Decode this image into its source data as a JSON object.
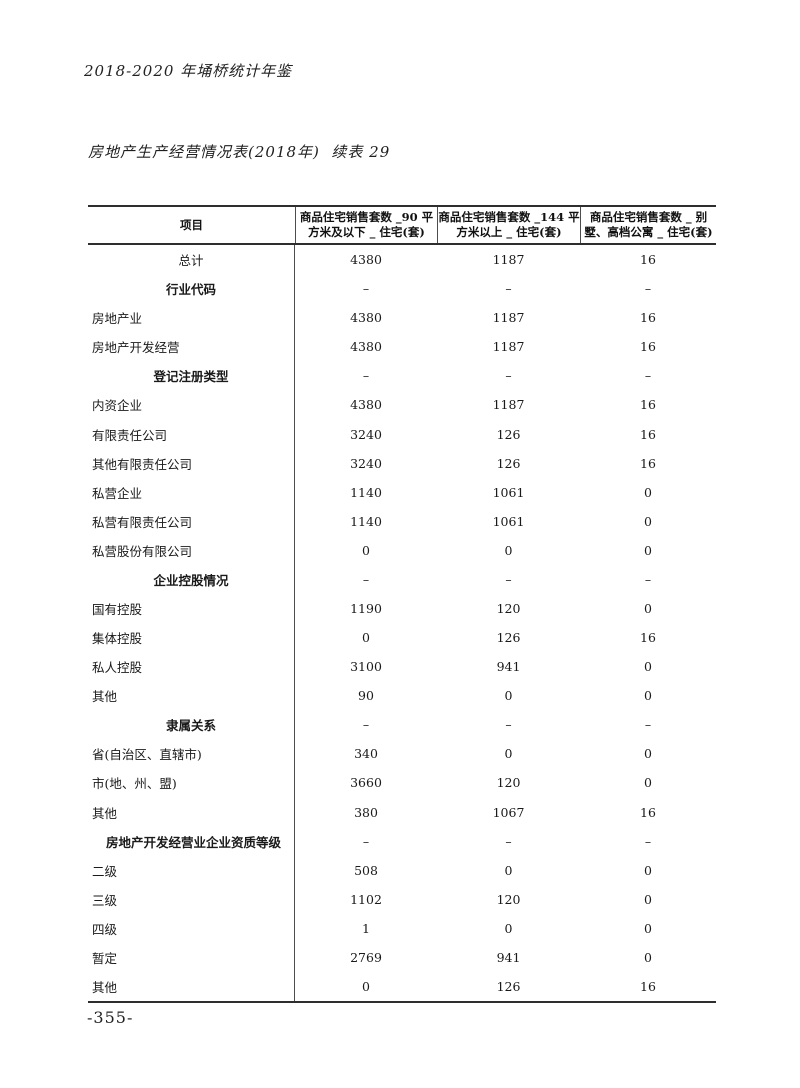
{
  "page": {
    "book_title": "2018-2020 年埇桥统计年鉴",
    "table_title": "房地产生产经营情况表(2018年)  续表 29",
    "page_number": "-355-"
  },
  "table": {
    "columns": [
      {
        "label": "项目"
      },
      {
        "label": "商品住宅销售套数 _90 平\n方米及以下 _ 住宅(套)"
      },
      {
        "label": "商品住宅销售套数 _144 平\n方米以上 _ 住宅(套)"
      },
      {
        "label": "商品住宅销售套数 _ 别\n墅、高档公寓 _ 住宅(套)"
      }
    ],
    "rows": [
      {
        "label": "总计",
        "style": "total",
        "values": [
          "4380",
          "1187",
          "16"
        ]
      },
      {
        "label": "行业代码",
        "style": "section",
        "values": [
          "–",
          "–",
          "–"
        ]
      },
      {
        "label": "房地产业",
        "style": "data",
        "values": [
          "4380",
          "1187",
          "16"
        ]
      },
      {
        "label": "房地产开发经营",
        "style": "data",
        "values": [
          "4380",
          "1187",
          "16"
        ]
      },
      {
        "label": "登记注册类型",
        "style": "section",
        "values": [
          "–",
          "–",
          "–"
        ]
      },
      {
        "label": "内资企业",
        "style": "data",
        "values": [
          "4380",
          "1187",
          "16"
        ]
      },
      {
        "label": "有限责任公司",
        "style": "data",
        "values": [
          "3240",
          "126",
          "16"
        ]
      },
      {
        "label": "其他有限责任公司",
        "style": "data",
        "values": [
          "3240",
          "126",
          "16"
        ]
      },
      {
        "label": "私营企业",
        "style": "data",
        "values": [
          "1140",
          "1061",
          "0"
        ]
      },
      {
        "label": "私营有限责任公司",
        "style": "data",
        "values": [
          "1140",
          "1061",
          "0"
        ]
      },
      {
        "label": "私营股份有限公司",
        "style": "data",
        "values": [
          "0",
          "0",
          "0"
        ]
      },
      {
        "label": "企业控股情况",
        "style": "section",
        "values": [
          "–",
          "–",
          "–"
        ]
      },
      {
        "label": "国有控股",
        "style": "data",
        "values": [
          "1190",
          "120",
          "0"
        ]
      },
      {
        "label": "集体控股",
        "style": "data",
        "values": [
          "0",
          "126",
          "16"
        ]
      },
      {
        "label": "私人控股",
        "style": "data",
        "values": [
          "3100",
          "941",
          "0"
        ]
      },
      {
        "label": "其他",
        "style": "data",
        "values": [
          "90",
          "0",
          "0"
        ]
      },
      {
        "label": "隶属关系",
        "style": "section",
        "values": [
          "–",
          "–",
          "–"
        ]
      },
      {
        "label": "省(自治区、直辖市)",
        "style": "data",
        "values": [
          "340",
          "0",
          "0"
        ]
      },
      {
        "label": "市(地、州、盟)",
        "style": "data",
        "values": [
          "3660",
          "120",
          "0"
        ]
      },
      {
        "label": "其他",
        "style": "data",
        "values": [
          "380",
          "1067",
          "16"
        ]
      },
      {
        "label": "房地产开发经营业企业资质等级",
        "style": "section-left",
        "values": [
          "–",
          "–",
          "–"
        ]
      },
      {
        "label": "二级",
        "style": "data",
        "values": [
          "508",
          "0",
          "0"
        ]
      },
      {
        "label": "三级",
        "style": "data",
        "values": [
          "1102",
          "120",
          "0"
        ]
      },
      {
        "label": "四级",
        "style": "data",
        "values": [
          "1",
          "0",
          "0"
        ]
      },
      {
        "label": "暂定",
        "style": "data",
        "values": [
          "2769",
          "941",
          "0"
        ]
      },
      {
        "label": "其他",
        "style": "data",
        "values": [
          "0",
          "126",
          "16"
        ]
      }
    ]
  }
}
